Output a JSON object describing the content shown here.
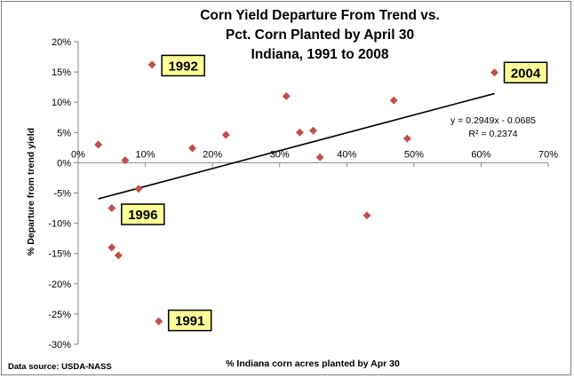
{
  "chart_data": {
    "type": "scatter",
    "title": [
      "Corn Yield Departure From Trend vs.",
      "Pct. Corn Planted by April 30",
      "Indiana, 1991 to 2008"
    ],
    "xlabel": "% Indiana corn acres planted by Apr 30",
    "ylabel": "% Departure from trend yield",
    "xlim": [
      0,
      0.7
    ],
    "ylim": [
      -0.3,
      0.2
    ],
    "x_ticks": [
      "0%",
      "10%",
      "20%",
      "30%",
      "40%",
      "50%",
      "60%",
      "70%"
    ],
    "y_ticks": [
      "20%",
      "15%",
      "10%",
      "5%",
      "0%",
      "-5%",
      "-10%",
      "-15%",
      "-20%",
      "-25%",
      "-30%"
    ],
    "marker_color": "#c0504d",
    "points": [
      {
        "x": 0.03,
        "y": 0.03
      },
      {
        "x": 0.05,
        "y": -0.075
      },
      {
        "x": 0.05,
        "y": -0.14
      },
      {
        "x": 0.06,
        "y": -0.153
      },
      {
        "x": 0.07,
        "y": 0.004
      },
      {
        "x": 0.09,
        "y": -0.043
      },
      {
        "x": 0.11,
        "y": 0.162
      },
      {
        "x": 0.12,
        "y": -0.262
      },
      {
        "x": 0.17,
        "y": 0.024
      },
      {
        "x": 0.22,
        "y": 0.046
      },
      {
        "x": 0.31,
        "y": 0.11
      },
      {
        "x": 0.33,
        "y": 0.05
      },
      {
        "x": 0.35,
        "y": 0.053
      },
      {
        "x": 0.36,
        "y": 0.009
      },
      {
        "x": 0.43,
        "y": -0.087
      },
      {
        "x": 0.47,
        "y": 0.103
      },
      {
        "x": 0.49,
        "y": 0.04
      },
      {
        "x": 0.62,
        "y": 0.149
      }
    ],
    "trendline": {
      "slope": 0.2949,
      "intercept": -0.0685,
      "x_range": [
        0.03,
        0.62
      ]
    },
    "equation": "y = 0.2949x - 0.0685",
    "r_squared": "R² = 0.2374",
    "callouts": [
      {
        "label": "1992",
        "x": 0.11,
        "y": 0.162
      },
      {
        "label": "2004",
        "x": 0.62,
        "y": 0.149
      },
      {
        "label": "1996",
        "x": 0.05,
        "y": -0.075
      },
      {
        "label": "1991",
        "x": 0.12,
        "y": -0.262
      }
    ],
    "grid": false,
    "legend": "none"
  },
  "source": "Data source: USDA-NASS"
}
